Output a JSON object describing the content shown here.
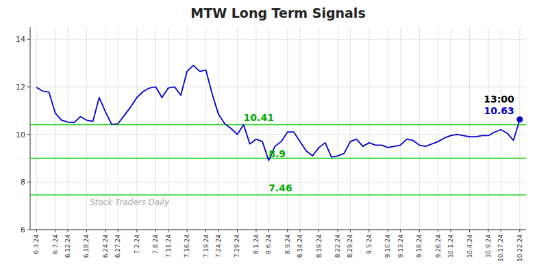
{
  "chart_data": {
    "type": "line",
    "title": "MTW Long Term Signals",
    "watermark": "Stock Traders Daily",
    "color": "#0000cc",
    "categories": [
      "6.3.24",
      null,
      null,
      "6.7.24",
      null,
      "6.12.24",
      null,
      null,
      "6.18.24",
      null,
      null,
      "6.24.24",
      null,
      "6.27.24",
      null,
      null,
      "7.2.24",
      null,
      null,
      "7.8.24",
      null,
      "7.11.24",
      null,
      null,
      "7.16.24",
      null,
      null,
      "7.19.24",
      null,
      "7.24.24",
      null,
      null,
      "7.29.24",
      null,
      null,
      "8.1.24",
      null,
      "8.6.24",
      null,
      null,
      "8.9.24",
      null,
      "8.14.24",
      null,
      null,
      "8.19.24",
      null,
      null,
      "8.22.24",
      null,
      "8.29.24",
      null,
      null,
      "9.5.24",
      null,
      null,
      "9.10.24",
      null,
      "9.13.24",
      null,
      null,
      "9.18.24",
      null,
      null,
      "9.26.24",
      null,
      "10.1.24",
      null,
      null,
      "10.4.24",
      null,
      null,
      "10.9.24",
      null,
      "10.17.24",
      null,
      null,
      "10.22.24"
    ],
    "values": [
      11.98,
      11.82,
      11.78,
      10.9,
      10.6,
      10.52,
      10.5,
      10.75,
      10.6,
      10.55,
      11.55,
      10.95,
      10.42,
      10.45,
      10.8,
      11.15,
      11.55,
      11.8,
      11.95,
      12.0,
      11.55,
      11.95,
      12.0,
      11.65,
      12.65,
      12.9,
      12.65,
      12.7,
      11.7,
      10.85,
      10.45,
      10.25,
      10.0,
      10.41,
      9.6,
      9.8,
      9.7,
      8.9,
      9.5,
      9.7,
      10.1,
      10.1,
      9.7,
      9.3,
      9.1,
      9.45,
      9.65,
      9.05,
      9.1,
      9.2,
      9.7,
      9.8,
      9.5,
      9.65,
      9.55,
      9.55,
      9.45,
      9.5,
      9.55,
      9.8,
      9.75,
      9.55,
      9.5,
      9.6,
      9.7,
      9.85,
      9.95,
      10.0,
      9.95,
      9.9,
      9.9,
      9.95,
      9.95,
      10.1,
      10.2,
      10.05,
      9.75,
      10.63
    ],
    "hlines": [
      {
        "value": 10.41,
        "color": "#00cc00"
      },
      {
        "value": 9.0,
        "color": "#00cc00"
      },
      {
        "value": 7.46,
        "color": "#00cc00"
      }
    ],
    "annotations": [
      {
        "text": "10.41",
        "index": 33,
        "y": 10.41,
        "color": "#00aa00"
      },
      {
        "text": "8.9",
        "index": 37,
        "y": 8.9,
        "color": "#00aa00"
      },
      {
        "text": "7.46",
        "index": 37,
        "y": 7.46,
        "color": "#00aa00"
      },
      {
        "text": "13:00",
        "index": 77,
        "y": 10.63,
        "color": "#000000"
      },
      {
        "text": "10.63",
        "index": 77,
        "y": 10.63,
        "color": "#0000cc"
      }
    ],
    "ylim": [
      6,
      14.5
    ],
    "yticks": [
      6,
      8,
      10,
      12,
      14
    ],
    "grid": true
  }
}
